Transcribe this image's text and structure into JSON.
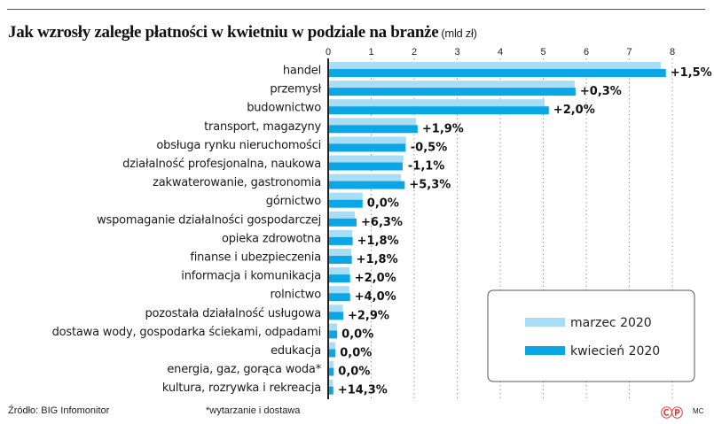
{
  "title": "Jak wzrosły zaległe płatności w kwietniu w podziale na branże",
  "unit": "(mld zł)",
  "footer": {
    "source": "Źródło: BIG Infomonitor",
    "note": "*wytarzanie i dostawa",
    "copyright": "ⒸⓅ",
    "author": "MC"
  },
  "colors": {
    "marzec": "#a8def5",
    "kwiecien": "#0aa6e6",
    "axis": "#222222",
    "grid": "#9a9a9a"
  },
  "chart_data": {
    "type": "bar",
    "orientation": "horizontal",
    "title": "Jak wzrosły zaległe płatności w kwietniu w podziale na branże",
    "xlabel": "mld zł",
    "ylabel": "",
    "xlim": [
      0,
      8
    ],
    "xticks": [
      "0",
      "1",
      "2",
      "3",
      "4",
      "5",
      "6",
      "7",
      "8"
    ],
    "grid": "vertical dotted",
    "legend_position": "bottom-right",
    "categories": [
      "handel",
      "przemysł",
      "budownictwo",
      "transport, magazyny",
      "obsługa rynku nieruchomości",
      "działalność profesjonalna, naukowa",
      "zakwaterowanie, gastronomia",
      "górnictwo",
      "wspomaganie działalności gospodarczej",
      "opieka zdrowotna",
      "finanse i ubezpieczenia",
      "informacja i komunikacja",
      "rolnictwo",
      "pozostała działalność usługowa",
      "dostawa wody, gospodarka ściekami, odpadami",
      "edukacja",
      "energia, gaz, gorąca woda*",
      "kultura, rozrywka i rekreacja"
    ],
    "series": [
      {
        "name": "marzec 2020",
        "values": [
          7.73,
          5.73,
          5.03,
          2.04,
          1.81,
          1.75,
          1.69,
          0.8,
          0.62,
          0.56,
          0.54,
          0.5,
          0.49,
          0.34,
          0.21,
          0.17,
          0.13,
          0.11
        ]
      },
      {
        "name": "kwiecień 2020",
        "values": [
          7.85,
          5.75,
          5.13,
          2.08,
          1.8,
          1.73,
          1.78,
          0.8,
          0.66,
          0.57,
          0.55,
          0.51,
          0.51,
          0.35,
          0.21,
          0.17,
          0.13,
          0.12
        ]
      }
    ],
    "change_labels": [
      "+1,5%",
      "+0,3%",
      "+2,0%",
      "+1,9%",
      "-0,5%",
      "-1,1%",
      "+5,3%",
      "0,0%",
      "+6,3%",
      "+1,8%",
      "+1,8%",
      "+2,0%",
      "+4,0%",
      "+2,9%",
      "0,0%",
      "0,0%",
      "0,0%",
      "+14,3%"
    ]
  }
}
